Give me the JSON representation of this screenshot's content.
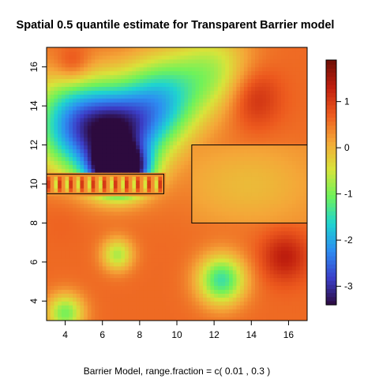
{
  "chart_data": {
    "type": "heatmap",
    "title": "Spatial 0.5 quantile estimate for Transparent Barrier model",
    "xlabel": "Barrier Model, range.fraction = c( 0.01 ,  0.3 )",
    "ylabel": "",
    "xlim": [
      3,
      17
    ],
    "ylim": [
      3,
      17
    ],
    "x_ticks": [
      4,
      6,
      8,
      10,
      12,
      14,
      16
    ],
    "y_ticks": [
      4,
      6,
      8,
      10,
      12,
      14,
      16
    ],
    "colorbar": {
      "range": [
        -3.4,
        1.9
      ],
      "ticks": [
        -3,
        -2,
        -1,
        0,
        1
      ],
      "colors": [
        "#2d0a3e",
        "#3b3fc9",
        "#2d8df2",
        "#1fd4d0",
        "#6ff25a",
        "#d8e43a",
        "#f4a738",
        "#ed5a1e",
        "#c01f0e",
        "#6e0f06"
      ]
    },
    "barriers": [
      {
        "x": [
          3,
          9.3
        ],
        "y": [
          9.5,
          10.5
        ]
      },
      {
        "x": [
          10.8,
          17
        ],
        "y": [
          8,
          12
        ]
      }
    ],
    "base_value": 0.6,
    "features": [
      {
        "x": 4.4,
        "y": 16.1,
        "value": 1.25,
        "sx": 0.7,
        "sy": 0.7
      },
      {
        "x": 14.1,
        "y": 14.5,
        "value": 1.3,
        "sx": 1.0,
        "sy": 1.1
      },
      {
        "x": 15.8,
        "y": 6.3,
        "value": 1.35,
        "sx": 0.9,
        "sy": 0.9
      },
      {
        "x": 3.9,
        "y": 8.5,
        "value": 0.7,
        "sx": 0.9,
        "sy": 1.0
      },
      {
        "x": 6.9,
        "y": 10.7,
        "value": -4.2,
        "sx": 1.0,
        "sy": 0.8
      },
      {
        "x": 6.7,
        "y": 12.6,
        "value": -2.7,
        "sx": 1.6,
        "sy": 1.6
      },
      {
        "x": 4.2,
        "y": 13.2,
        "value": -1.5,
        "sx": 1.6,
        "sy": 1.8
      },
      {
        "x": 9.2,
        "y": 14.3,
        "value": -1.4,
        "sx": 1.5,
        "sy": 1.6
      },
      {
        "x": 12.0,
        "y": 15.8,
        "value": -0.6,
        "sx": 1.5,
        "sy": 1.5
      },
      {
        "x": 12.4,
        "y": 5.1,
        "value": -1.4,
        "sx": 0.9,
        "sy": 0.9
      },
      {
        "x": 6.8,
        "y": 6.4,
        "value": -0.7,
        "sx": 0.6,
        "sy": 0.6
      },
      {
        "x": 4.0,
        "y": 3.4,
        "value": -1.0,
        "sx": 0.7,
        "sy": 0.7
      },
      {
        "x": 13.8,
        "y": 10.0,
        "value": -0.6,
        "sx": 2.6,
        "sy": 1.5
      }
    ]
  }
}
